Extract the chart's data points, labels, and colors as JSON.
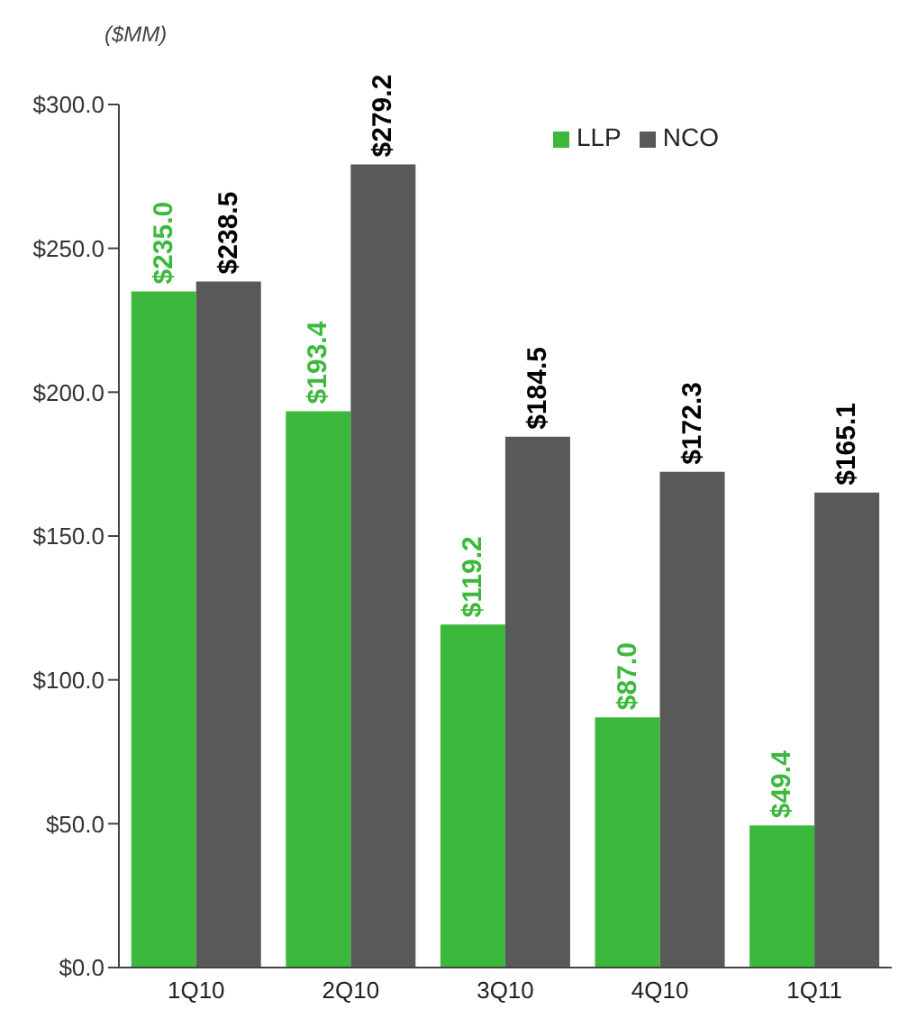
{
  "chart_data": {
    "type": "bar",
    "ylabel": "($MM)",
    "categories": [
      "1Q10",
      "2Q10",
      "3Q10",
      "4Q10",
      "1Q11"
    ],
    "series": [
      {
        "name": "LLP",
        "color": "#3cb93c",
        "values": [
          235.0,
          193.4,
          119.2,
          87.0,
          49.4
        ],
        "value_labels": [
          "$235.0",
          "$193.4",
          "$119.2",
          "$87.0",
          "$49.4"
        ]
      },
      {
        "name": "NCO",
        "color": "#595959",
        "values": [
          238.5,
          279.2,
          184.5,
          172.3,
          165.1
        ],
        "value_labels": [
          "$238.5",
          "$279.2",
          "$184.5",
          "$172.3",
          "$165.1"
        ]
      }
    ],
    "ylim": [
      0,
      300
    ],
    "yticks": [
      {
        "value": 0,
        "label": "$0.0"
      },
      {
        "value": 50,
        "label": "$50.0"
      },
      {
        "value": 100,
        "label": "$100.0"
      },
      {
        "value": 150,
        "label": "$150.0"
      },
      {
        "value": 200,
        "label": "$200.0"
      },
      {
        "value": 250,
        "label": "$250.0"
      },
      {
        "value": 300,
        "label": "$300.0"
      }
    ],
    "grid": false,
    "legend": "top right"
  }
}
